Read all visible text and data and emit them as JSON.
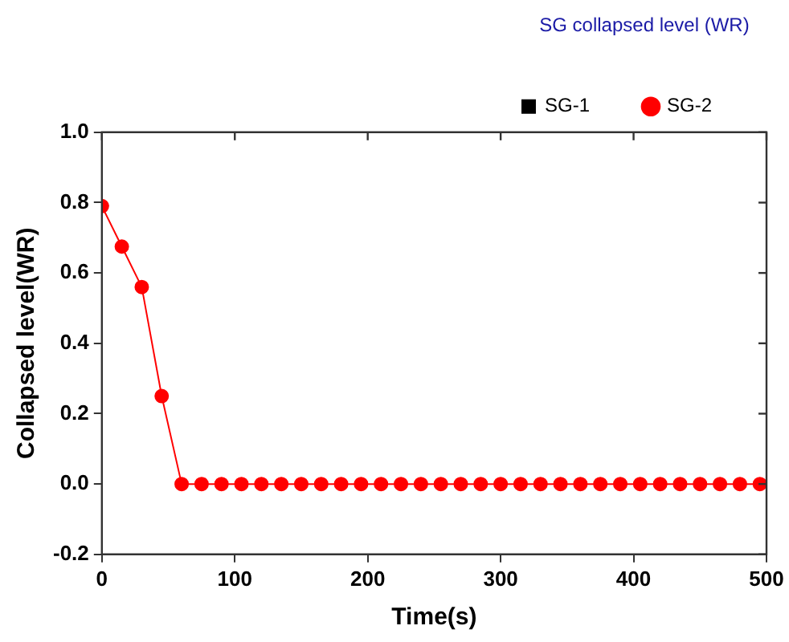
{
  "chart_data": {
    "type": "line",
    "xlabel": "Time(s)",
    "ylabel": "Collapsed level(WR)",
    "legend_title": "SG collapsed level (WR)",
    "legend": "top right",
    "grid": false,
    "x": [
      0,
      15,
      30,
      45,
      60,
      75,
      90,
      105,
      120,
      135,
      150,
      165,
      180,
      195,
      210,
      225,
      240,
      255,
      270,
      285,
      300,
      315,
      330,
      345,
      360,
      375,
      390,
      405,
      420,
      435,
      450,
      465,
      480,
      495
    ],
    "xlim": [
      0,
      500
    ],
    "xticks": [
      0,
      100,
      200,
      300,
      400,
      500
    ],
    "ylim": [
      -0.2,
      1.0
    ],
    "yticks": [
      {
        "value": -0.2,
        "label": "-0.2"
      },
      {
        "value": 0,
        "label": "0.0"
      },
      {
        "value": 0.2,
        "label": "0.2"
      },
      {
        "value": 0.4,
        "label": "0.4"
      },
      {
        "value": 0.6,
        "label": "0.6"
      },
      {
        "value": 0.8,
        "label": "0.8"
      },
      {
        "value": 1.0,
        "label": "1.0"
      }
    ],
    "series": [
      {
        "name": "SG-1",
        "color": "#000000",
        "marker": "square",
        "values": [
          null,
          null,
          null,
          null,
          null,
          null,
          null,
          null,
          null,
          null,
          null,
          null,
          null,
          null,
          null,
          null,
          null,
          null,
          null,
          null,
          null,
          null,
          null,
          null,
          null,
          null,
          null,
          null,
          null,
          null,
          null,
          null,
          null,
          null
        ]
      },
      {
        "name": "SG-2",
        "color": "#ff0000",
        "marker": "circle",
        "values": [
          0.79,
          0.675,
          0.56,
          0.25,
          0,
          0,
          0,
          0,
          0,
          0,
          0,
          0,
          0,
          0,
          0,
          0,
          0,
          0,
          0,
          0,
          0,
          0,
          0,
          0,
          0,
          0,
          0,
          0,
          0,
          0,
          0,
          0,
          0,
          0
        ]
      }
    ]
  }
}
